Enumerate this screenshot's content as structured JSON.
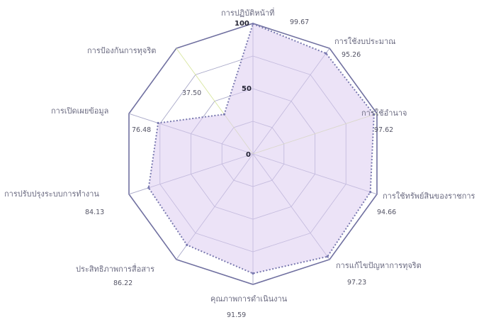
{
  "chart_data": {
    "type": "radar",
    "categories": [
      "การปฏิบัติหน้าที่",
      "การใช้งบประมาณ",
      "การใช้อำนาจ",
      "การใช้ทรัพย์สินของราชการ",
      "การแก้ไขปัญหาการทุจริต",
      "คุณภาพการดำเนินงาน",
      "ประสิทธิภาพการสื่อสาร",
      "การปรับปรุงระบบการทำงาน",
      "การเปิดเผยข้อมูล",
      "การป้องกันการทุจริต"
    ],
    "value_labels": [
      "99.67",
      "95.26",
      "97.62",
      "94.66",
      "97.23",
      "91.59",
      "86.22",
      "84.13",
      "76.48",
      "37.50"
    ],
    "series": [
      {
        "values": [
          99.67,
          95.26,
          97.62,
          94.66,
          97.23,
          91.59,
          86.22,
          84.13,
          76.48,
          37.5
        ]
      }
    ],
    "r_ticks": [
      "0",
      "50",
      "100"
    ],
    "r_range": [
      0,
      100
    ],
    "grid": true,
    "legend": "none",
    "colors": {
      "grid": "#a8a8c8",
      "outer_ring": "#7070a0",
      "fill": "#dcccf0",
      "fill_opacity": 0.55,
      "line": "#7a7ab0",
      "spoke_highlight": "#d8e6a0"
    }
  }
}
